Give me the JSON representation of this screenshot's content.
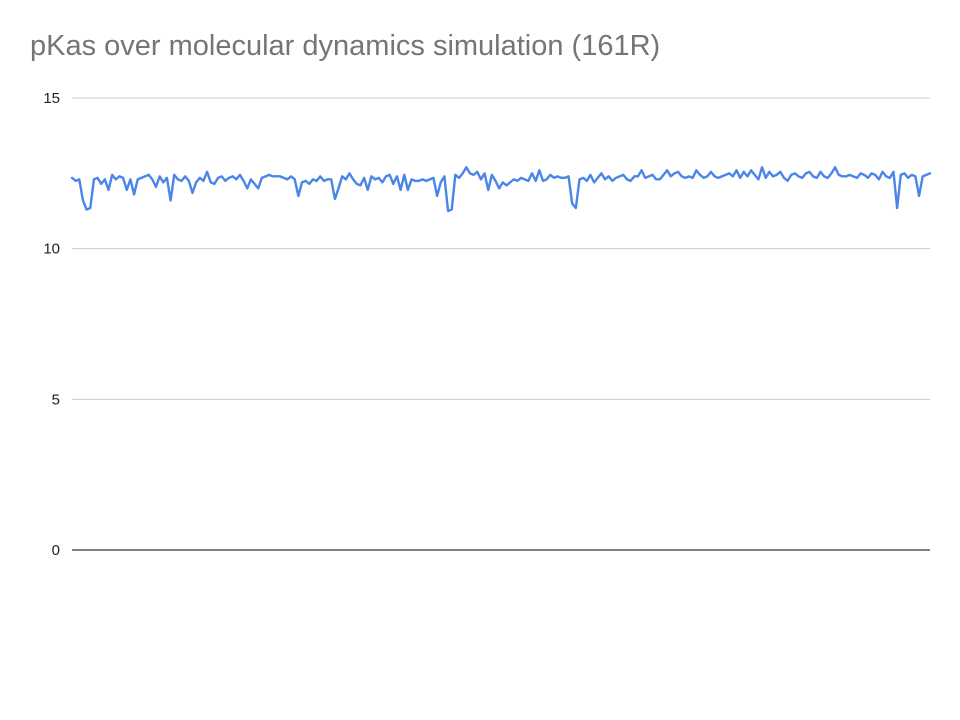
{
  "chart_data": {
    "type": "line",
    "title": "pKas over molecular dynamics simulation (161R)",
    "xlabel": "",
    "ylabel": "",
    "ylim": [
      0,
      15
    ],
    "yticks": [
      "0",
      "5",
      "10",
      "15"
    ],
    "grid": true,
    "legend": "none",
    "series": [
      {
        "color": "#4a86e8",
        "values": [
          12.35,
          12.25,
          12.3,
          11.6,
          11.3,
          11.35,
          12.3,
          12.35,
          12.15,
          12.3,
          11.95,
          12.45,
          12.3,
          12.4,
          12.35,
          11.95,
          12.3,
          11.8,
          12.3,
          12.35,
          12.4,
          12.45,
          12.3,
          12.05,
          12.4,
          12.2,
          12.35,
          11.6,
          12.45,
          12.3,
          12.25,
          12.4,
          12.25,
          11.85,
          12.2,
          12.35,
          12.25,
          12.55,
          12.2,
          12.15,
          12.35,
          12.4,
          12.25,
          12.35,
          12.4,
          12.3,
          12.45,
          12.25,
          12.0,
          12.3,
          12.15,
          12.0,
          12.35,
          12.4,
          12.45,
          12.4,
          12.4,
          12.4,
          12.35,
          12.3,
          12.4,
          12.3,
          11.75,
          12.2,
          12.25,
          12.15,
          12.3,
          12.25,
          12.4,
          12.25,
          12.3,
          12.3,
          11.65,
          12.0,
          12.4,
          12.3,
          12.5,
          12.3,
          12.15,
          12.1,
          12.35,
          11.95,
          12.4,
          12.3,
          12.35,
          12.2,
          12.4,
          12.45,
          12.15,
          12.4,
          11.95,
          12.45,
          11.95,
          12.3,
          12.25,
          12.25,
          12.3,
          12.25,
          12.3,
          12.35,
          11.75,
          12.2,
          12.4,
          11.25,
          11.3,
          12.45,
          12.35,
          12.5,
          12.7,
          12.5,
          12.45,
          12.55,
          12.3,
          12.5,
          11.95,
          12.45,
          12.25,
          12.0,
          12.2,
          12.1,
          12.2,
          12.3,
          12.25,
          12.35,
          12.3,
          12.25,
          12.5,
          12.25,
          12.6,
          12.25,
          12.3,
          12.45,
          12.35,
          12.4,
          12.35,
          12.35,
          12.4,
          11.5,
          11.35,
          12.3,
          12.35,
          12.25,
          12.45,
          12.2,
          12.35,
          12.5,
          12.3,
          12.4,
          12.25,
          12.35,
          12.4,
          12.45,
          12.3,
          12.25,
          12.4,
          12.4,
          12.6,
          12.35,
          12.4,
          12.45,
          12.3,
          12.3,
          12.45,
          12.6,
          12.4,
          12.5,
          12.55,
          12.4,
          12.35,
          12.4,
          12.35,
          12.6,
          12.45,
          12.35,
          12.4,
          12.55,
          12.4,
          12.35,
          12.4,
          12.45,
          12.5,
          12.4,
          12.6,
          12.35,
          12.55,
          12.4,
          12.6,
          12.45,
          12.3,
          12.7,
          12.35,
          12.55,
          12.4,
          12.45,
          12.55,
          12.35,
          12.25,
          12.45,
          12.5,
          12.4,
          12.35,
          12.5,
          12.55,
          12.4,
          12.35,
          12.55,
          12.4,
          12.35,
          12.5,
          12.7,
          12.45,
          12.4,
          12.4,
          12.45,
          12.4,
          12.35,
          12.5,
          12.45,
          12.35,
          12.5,
          12.45,
          12.3,
          12.55,
          12.4,
          12.35,
          12.55,
          11.35,
          12.45,
          12.5,
          12.35,
          12.45,
          12.4,
          11.75,
          12.4,
          12.45,
          12.5
        ]
      }
    ]
  }
}
